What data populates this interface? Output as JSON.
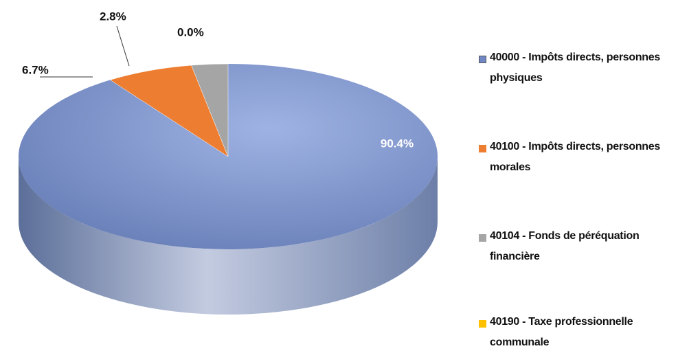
{
  "chart_data": {
    "type": "pie",
    "categories": [
      "40000 - Impôts directs, personnes physiques",
      "40100 - Impôts directs, personnes morales",
      "40104 - Fonds de péréquation financière",
      "40190 - Taxe professionnelle communale"
    ],
    "values": [
      90.4,
      6.7,
      2.8,
      0.0
    ],
    "value_labels": [
      "90.4%",
      "6.7%",
      "2.8%",
      "0.0%"
    ],
    "colors": [
      "#6f87c2",
      "#ed7d31",
      "#a5a5a5",
      "#ffc000"
    ],
    "legend": "right"
  }
}
